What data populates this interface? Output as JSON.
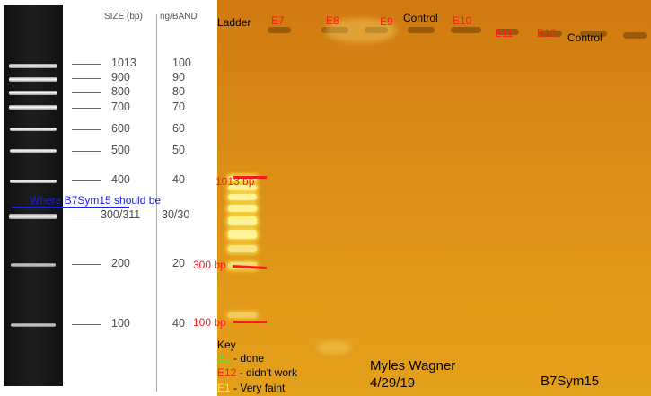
{
  "ladder_reference": {
    "header_size": "SIZE (bp)",
    "header_ng": "ng/BAND",
    "rows": [
      {
        "size": "1013",
        "ng": "100"
      },
      {
        "size": "900",
        "ng": "90"
      },
      {
        "size": "800",
        "ng": "80"
      },
      {
        "size": "700",
        "ng": "70"
      },
      {
        "size": "600",
        "ng": "60"
      },
      {
        "size": "500",
        "ng": "50"
      },
      {
        "size": "400",
        "ng": "40"
      },
      {
        "size": "300/311",
        "ng": "30/30"
      },
      {
        "size": "200",
        "ng": "20"
      },
      {
        "size": "100",
        "ng": "40"
      }
    ]
  },
  "annotation": {
    "target_text": "Where B7Sym15 should be",
    "target_color": "#1a1aff"
  },
  "gel": {
    "lanes": [
      {
        "label": "Ladder",
        "color": "#000000"
      },
      {
        "label": "E7",
        "color": "#ff1a1a"
      },
      {
        "label": "E8",
        "color": "#ff1a1a"
      },
      {
        "label": "E9",
        "color": "#ff1a1a"
      },
      {
        "label": "Control",
        "color": "#000000"
      },
      {
        "label": "E10",
        "color": "#ff1a1a"
      },
      {
        "label": "E11",
        "color": "#ff1a1a"
      },
      {
        "label": "E12",
        "color": "#ff1a1a"
      },
      {
        "label": "Control",
        "color": "#000000"
      }
    ],
    "bp_markers": [
      "1013 bp",
      "300 bp",
      "100 bp"
    ],
    "marker_color": "#ff1a1a"
  },
  "key": {
    "title": "Key",
    "items": [
      {
        "code": "E1",
        "code_color": "#55dd22",
        "text": " - done"
      },
      {
        "code": "E12",
        "code_color": "#ff1a1a",
        "text": " - didn't work"
      },
      {
        "code": "E1",
        "code_color": "#ffee22",
        "text": " - Very faint"
      }
    ]
  },
  "footer": {
    "author": "Myles Wagner",
    "date": "4/29/19",
    "sample": "B7Sym15"
  }
}
